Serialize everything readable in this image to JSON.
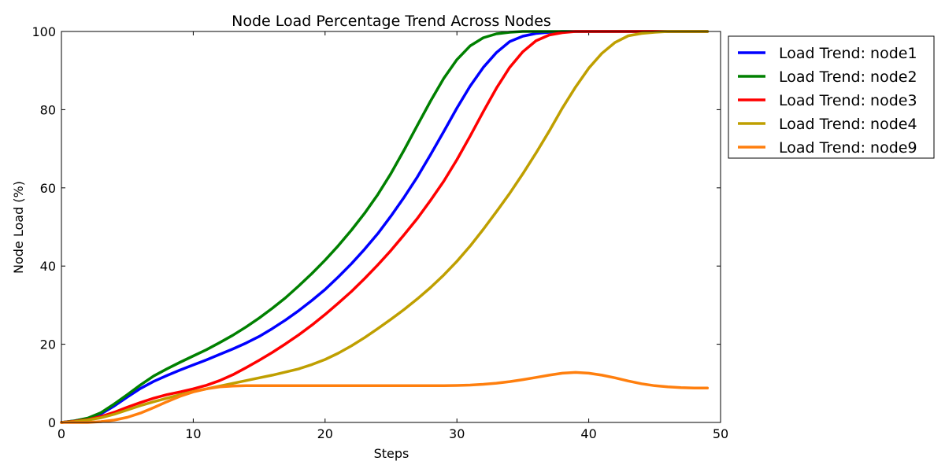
{
  "chart_data": {
    "type": "line",
    "title": "Node Load Percentage Trend Across Nodes",
    "xlabel": "Steps",
    "ylabel": "Node Load (%)",
    "xlim": [
      0,
      50
    ],
    "ylim": [
      0,
      100
    ],
    "xticks": [
      0,
      10,
      20,
      30,
      40,
      50
    ],
    "yticks": [
      0,
      20,
      40,
      60,
      80,
      100
    ],
    "grid": false,
    "legend_position": "outside top-right",
    "x": [
      0,
      1,
      2,
      3,
      4,
      5,
      6,
      7,
      8,
      9,
      10,
      11,
      12,
      13,
      14,
      15,
      16,
      17,
      18,
      19,
      20,
      21,
      22,
      23,
      24,
      25,
      26,
      27,
      28,
      29,
      30,
      31,
      32,
      33,
      34,
      35,
      36,
      37,
      38,
      39,
      40,
      41,
      42,
      43,
      44,
      45,
      46,
      47,
      48,
      49
    ],
    "series": [
      {
        "name": "Load Trend: node1",
        "color": "#0000ff",
        "values": [
          0,
          0.4,
          1.0,
          2.2,
          4.2,
          6.5,
          8.7,
          10.5,
          12.0,
          13.4,
          14.7,
          16.0,
          17.4,
          18.8,
          20.3,
          22.0,
          24.0,
          26.2,
          28.6,
          31.2,
          34.0,
          37.2,
          40.6,
          44.3,
          48.3,
          52.8,
          57.6,
          62.8,
          68.5,
          74.4,
          80.4,
          86.0,
          90.8,
          94.6,
          97.4,
          98.8,
          99.5,
          99.8,
          100,
          100,
          100,
          100,
          100,
          100,
          100,
          100,
          100,
          100,
          100,
          100
        ]
      },
      {
        "name": "Load Trend: node2",
        "color": "#008000",
        "values": [
          0,
          0.4,
          1.1,
          2.5,
          4.7,
          7.1,
          9.6,
          11.9,
          13.7,
          15.4,
          17.0,
          18.6,
          20.4,
          22.3,
          24.4,
          26.7,
          29.2,
          31.9,
          34.9,
          38.1,
          41.5,
          45.2,
          49.2,
          53.5,
          58.3,
          63.7,
          69.7,
          76.0,
          82.2,
          88.0,
          92.8,
          96.3,
          98.4,
          99.4,
          99.8,
          100,
          100,
          100,
          100,
          100,
          100,
          100,
          100,
          100,
          100,
          100,
          100,
          100,
          100,
          100
        ]
      },
      {
        "name": "Load Trend: node3",
        "color": "#ff0000",
        "values": [
          0,
          0.3,
          0.7,
          1.5,
          2.6,
          3.9,
          5.1,
          6.2,
          7.1,
          7.8,
          8.6,
          9.5,
          10.7,
          12.2,
          14.0,
          15.9,
          17.9,
          20.1,
          22.4,
          24.9,
          27.6,
          30.5,
          33.5,
          36.8,
          40.3,
          44.0,
          48.0,
          52.2,
          56.8,
          61.7,
          67.2,
          73.2,
          79.5,
          85.5,
          90.8,
          94.8,
          97.6,
          99.1,
          99.7,
          100,
          100,
          100,
          100,
          100,
          100,
          100,
          100,
          100,
          100,
          100
        ]
      },
      {
        "name": "Load Trend: node4",
        "color": "#bf9f00",
        "values": [
          0,
          0.2,
          0.6,
          1.2,
          2.1,
          3.2,
          4.3,
          5.3,
          6.2,
          7.1,
          7.9,
          8.6,
          9.3,
          10.0,
          10.7,
          11.4,
          12.1,
          12.9,
          13.7,
          14.8,
          16.1,
          17.7,
          19.6,
          21.7,
          24.0,
          26.4,
          28.9,
          31.6,
          34.5,
          37.7,
          41.2,
          45.1,
          49.4,
          53.9,
          58.6,
          63.6,
          68.9,
          74.5,
          80.4,
          85.8,
          90.6,
          94.4,
          97.2,
          98.9,
          99.5,
          99.8,
          100,
          100,
          100,
          100
        ]
      },
      {
        "name": "Load Trend: node9",
        "color": "#ff7f0e",
        "values": [
          0,
          0,
          0,
          0.2,
          0.6,
          1.3,
          2.4,
          3.8,
          5.3,
          6.7,
          7.8,
          8.6,
          9.1,
          9.3,
          9.4,
          9.4,
          9.4,
          9.4,
          9.4,
          9.4,
          9.4,
          9.4,
          9.4,
          9.4,
          9.4,
          9.4,
          9.4,
          9.4,
          9.4,
          9.4,
          9.45,
          9.55,
          9.75,
          10.05,
          10.45,
          10.95,
          11.5,
          12.1,
          12.6,
          12.8,
          12.6,
          12.1,
          11.4,
          10.6,
          9.9,
          9.4,
          9.1,
          8.9,
          8.8,
          8.8
        ]
      }
    ]
  }
}
